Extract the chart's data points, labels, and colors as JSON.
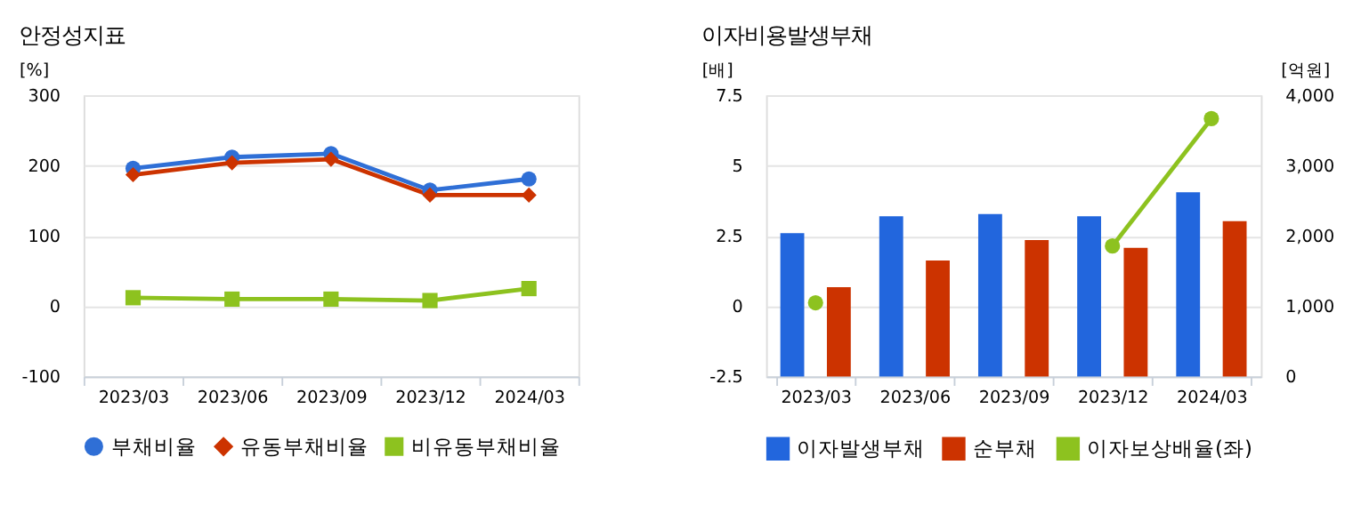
{
  "chart_data": [
    {
      "type": "line",
      "title": "안정성지표",
      "ylabel": "[%]",
      "categories": [
        "2023/03",
        "2023/06",
        "2023/09",
        "2023/12",
        "2024/03"
      ],
      "ylim": [
        -100,
        300
      ],
      "yticks": [
        -100,
        0,
        100,
        200,
        300
      ],
      "grid": "y",
      "legend": "bottom",
      "line_style": "solid",
      "series": [
        {
          "name": "부채비율",
          "color": "#2f6fd6",
          "marker": "circle",
          "values": [
            196,
            212,
            217,
            165,
            181
          ]
        },
        {
          "name": "유동부채비율",
          "color": "#cc3300",
          "marker": "diamond",
          "values": [
            187,
            204,
            209,
            158,
            158
          ]
        },
        {
          "name": "비유동부채비율",
          "color": "#8dc21f",
          "marker": "square",
          "values": [
            12,
            10,
            10,
            8,
            25
          ]
        }
      ]
    },
    {
      "type": "bar",
      "title": "이자비용발생부채",
      "ylabel": "[배]",
      "y2label": "[억원]",
      "categories": [
        "2023/03",
        "2023/06",
        "2023/09",
        "2023/12",
        "2024/03"
      ],
      "ylim": [
        -2.5,
        7.5
      ],
      "yticks": [
        -2.5,
        0,
        2.5,
        5,
        7.5
      ],
      "y2lim": [
        0,
        4000
      ],
      "y2ticks": [
        0,
        {
          "value": 1000,
          "label": "1,000"
        },
        {
          "value": 2000,
          "label": "2,000"
        },
        {
          "value": 3000,
          "label": "3,000"
        },
        {
          "value": 4000,
          "label": "4,000"
        }
      ],
      "grid": "y",
      "legend": "bottom",
      "series": [
        {
          "name": "이자발생부채",
          "color": "#2266dd",
          "axis": "y2",
          "values": [
            2040,
            2280,
            2310,
            2280,
            2620
          ]
        },
        {
          "name": "순부채",
          "color": "#cc3300",
          "axis": "y2",
          "values": [
            1270,
            1650,
            1940,
            1830,
            2210
          ]
        },
        {
          "name": "이자보상배율(좌)",
          "color": "#8dc21f",
          "type": "line",
          "marker": "circle",
          "axis": "y",
          "values": [
            0.12,
            null,
            null,
            2.14,
            6.67
          ]
        }
      ]
    }
  ]
}
